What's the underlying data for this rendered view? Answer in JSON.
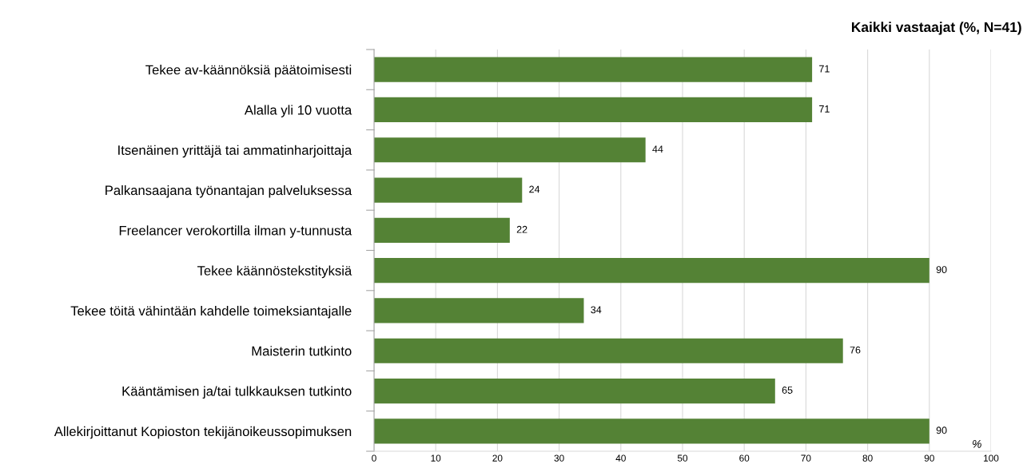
{
  "chart_data": {
    "type": "bar",
    "orientation": "horizontal",
    "title": "Kaikki vastaajat (%, N=41)",
    "xlabel": "%",
    "categories": [
      "Tekee av-käännöksiä päätoimisesti",
      "Alalla yli 10 vuotta",
      "Itsenäinen yrittäjä tai ammatinharjoittaja",
      "Palkansaajana työnantajan palveluksessa",
      "Freelancer verokortilla ilman y-tunnusta",
      "Tekee käännöstekstityksiä",
      "Tekee töitä vähintään kahdelle toimeksiantajalle",
      "Maisterin tutkinto",
      "Kääntämisen ja/tai tulkkauksen tutkinto",
      "Allekirjoittanut Kopioston tekijänoikeussopimuksen"
    ],
    "values": [
      71,
      71,
      44,
      24,
      22,
      90,
      34,
      76,
      65,
      90
    ],
    "color": "#548235",
    "data_labels": true,
    "grid": "x",
    "xlim": [
      0,
      100
    ],
    "xticks": [
      0,
      10,
      20,
      30,
      40,
      50,
      60,
      70,
      80,
      90,
      100
    ]
  }
}
